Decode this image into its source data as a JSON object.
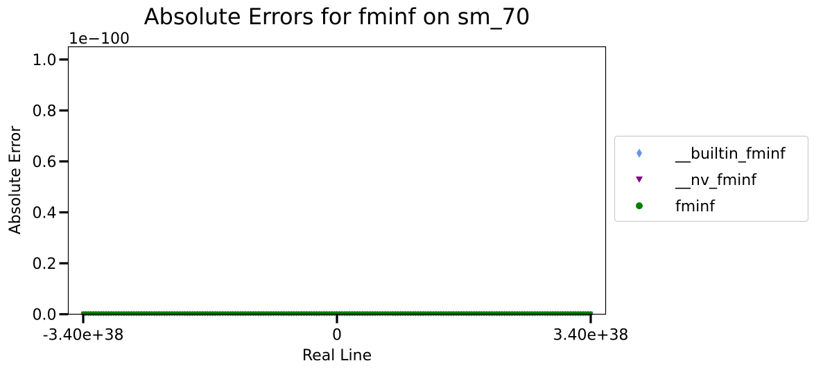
{
  "chart_data": {
    "type": "scatter",
    "title": "Absolute Errors for fminf on sm_70",
    "xlabel": "Real Line",
    "ylabel": "Absolute Error",
    "y_scale_label": "1e−100",
    "xlim": [
      -3.6e+38,
      3.6e+38
    ],
    "ylim": [
      0,
      1.05e-100
    ],
    "x_ticks": [
      {
        "value": -3.4e+38,
        "label": "-3.40e+38"
      },
      {
        "value": 0,
        "label": "0"
      },
      {
        "value": 3.4e+38,
        "label": "3.40e+38"
      }
    ],
    "y_ticks": [
      {
        "value": 0,
        "label": "0.0"
      },
      {
        "value": 2e-101,
        "label": "0.2"
      },
      {
        "value": 4e-101,
        "label": "0.4"
      },
      {
        "value": 6e-101,
        "label": "0.6"
      },
      {
        "value": 8e-101,
        "label": "0.8"
      },
      {
        "value": 1e-100,
        "label": "1.0"
      }
    ],
    "grid": false,
    "legend_position": "right",
    "series": [
      {
        "name": "__builtin_fminf",
        "marker": "diamond",
        "color": "#6495ED",
        "x_range": [
          -3.4e+38,
          3.4e+38
        ],
        "y": 0
      },
      {
        "name": "__nv_fminf",
        "marker": "triangle-down",
        "color": "#800080",
        "x_range": [
          -3.4e+38,
          3.4e+38
        ],
        "y": 0
      },
      {
        "name": "fminf",
        "marker": "circle",
        "color": "#008000",
        "x_range": [
          -3.4e+38,
          3.4e+38
        ],
        "y": 0
      }
    ]
  }
}
